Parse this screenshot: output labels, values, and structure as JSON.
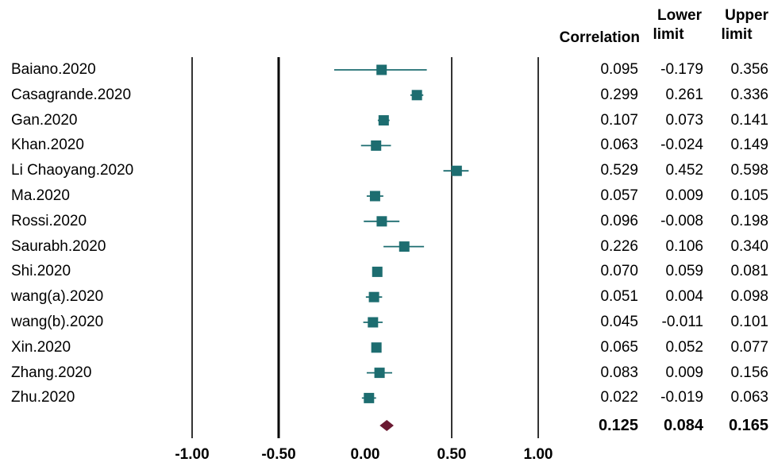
{
  "headers": {
    "correlation": "Correlation",
    "lower": [
      "Lower",
      "limit"
    ],
    "upper": [
      "Upper",
      "limit"
    ]
  },
  "colors": {
    "study": "#1d6d70",
    "summary": "#6b1a32",
    "axis": "#000000"
  },
  "chart_data": {
    "type": "forest",
    "title": "",
    "xlabel": "",
    "ylabel": "",
    "xlim": [
      -1.0,
      1.0
    ],
    "x_ticks": [
      "-1.00",
      "-0.50",
      "0.00",
      "0.50",
      "1.00"
    ],
    "reference_lines": [
      -1.0,
      -0.5,
      0.5,
      1.0
    ],
    "bold_reference": -0.5,
    "studies": [
      {
        "name": "Baiano.2020",
        "r": 0.095,
        "lower": -0.179,
        "upper": 0.356,
        "r_txt": "0.095",
        "lower_txt": "-0.179",
        "upper_txt": "0.356"
      },
      {
        "name": "Casagrande.2020",
        "r": 0.299,
        "lower": 0.261,
        "upper": 0.336,
        "r_txt": "0.299",
        "lower_txt": "0.261",
        "upper_txt": "0.336"
      },
      {
        "name": "Gan.2020",
        "r": 0.107,
        "lower": 0.073,
        "upper": 0.141,
        "r_txt": "0.107",
        "lower_txt": "0.073",
        "upper_txt": "0.141"
      },
      {
        "name": "Khan.2020",
        "r": 0.063,
        "lower": -0.024,
        "upper": 0.149,
        "r_txt": "0.063",
        "lower_txt": "-0.024",
        "upper_txt": "0.149"
      },
      {
        "name": "Li Chaoyang.2020",
        "r": 0.529,
        "lower": 0.452,
        "upper": 0.598,
        "r_txt": "0.529",
        "lower_txt": "0.452",
        "upper_txt": "0.598"
      },
      {
        "name": "Ma.2020",
        "r": 0.057,
        "lower": 0.009,
        "upper": 0.105,
        "r_txt": "0.057",
        "lower_txt": "0.009",
        "upper_txt": "0.105"
      },
      {
        "name": "Rossi.2020",
        "r": 0.096,
        "lower": -0.008,
        "upper": 0.198,
        "r_txt": "0.096",
        "lower_txt": "-0.008",
        "upper_txt": "0.198"
      },
      {
        "name": "Saurabh.2020",
        "r": 0.226,
        "lower": 0.106,
        "upper": 0.34,
        "r_txt": "0.226",
        "lower_txt": "0.106",
        "upper_txt": "0.340"
      },
      {
        "name": "Shi.2020",
        "r": 0.07,
        "lower": 0.059,
        "upper": 0.081,
        "r_txt": "0.070",
        "lower_txt": "0.059",
        "upper_txt": "0.081"
      },
      {
        "name": "wang(a).2020",
        "r": 0.051,
        "lower": 0.004,
        "upper": 0.098,
        "r_txt": "0.051",
        "lower_txt": "0.004",
        "upper_txt": "0.098"
      },
      {
        "name": "wang(b).2020",
        "r": 0.045,
        "lower": -0.011,
        "upper": 0.101,
        "r_txt": "0.045",
        "lower_txt": "-0.011",
        "upper_txt": "0.101"
      },
      {
        "name": "Xin.2020",
        "r": 0.065,
        "lower": 0.052,
        "upper": 0.077,
        "r_txt": "0.065",
        "lower_txt": "0.052",
        "upper_txt": "0.077"
      },
      {
        "name": "Zhang.2020",
        "r": 0.083,
        "lower": 0.009,
        "upper": 0.156,
        "r_txt": "0.083",
        "lower_txt": "0.009",
        "upper_txt": "0.156"
      },
      {
        "name": "Zhu.2020",
        "r": 0.022,
        "lower": -0.019,
        "upper": 0.063,
        "r_txt": "0.022",
        "lower_txt": "-0.019",
        "upper_txt": "0.063"
      }
    ],
    "summary": {
      "r": 0.125,
      "lower": 0.084,
      "upper": 0.165,
      "r_txt": "0.125",
      "lower_txt": "0.084",
      "upper_txt": "0.165"
    }
  }
}
